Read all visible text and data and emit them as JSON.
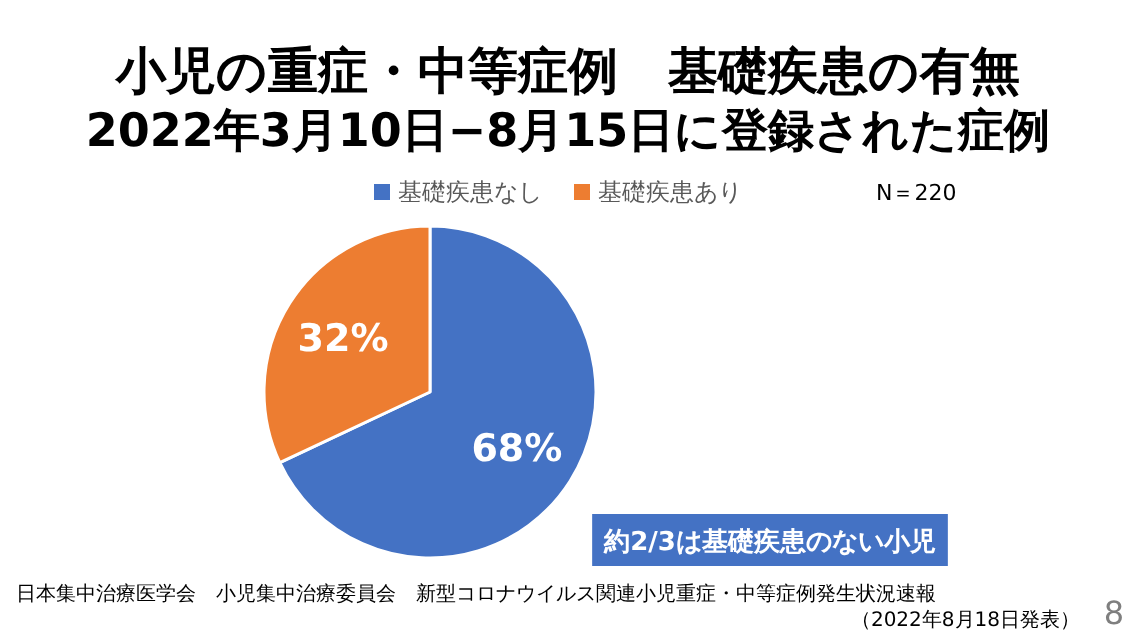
{
  "chart_data": {
    "type": "pie",
    "title": "小児の重症・中等症例　基礎疾患の有無",
    "subtitle": "2022年3月10日−8月15日に登録された症例",
    "categories": [
      "基礎疾患なし",
      "基礎疾患あり"
    ],
    "values": [
      68,
      32
    ],
    "colors": [
      "#4472c4",
      "#ed7d31"
    ],
    "data_labels": true,
    "value_labels": [
      "68%",
      "32%"
    ],
    "legend": "top",
    "annotations": [
      "N＝220",
      "約2/3は基礎疾患のない小児",
      "日本集中治療医学会　小児集中治療委員会　新型コロナウイルス関連小児重症・中等症例発生状況速報",
      "（2022年8月18日発表）",
      "8"
    ]
  }
}
